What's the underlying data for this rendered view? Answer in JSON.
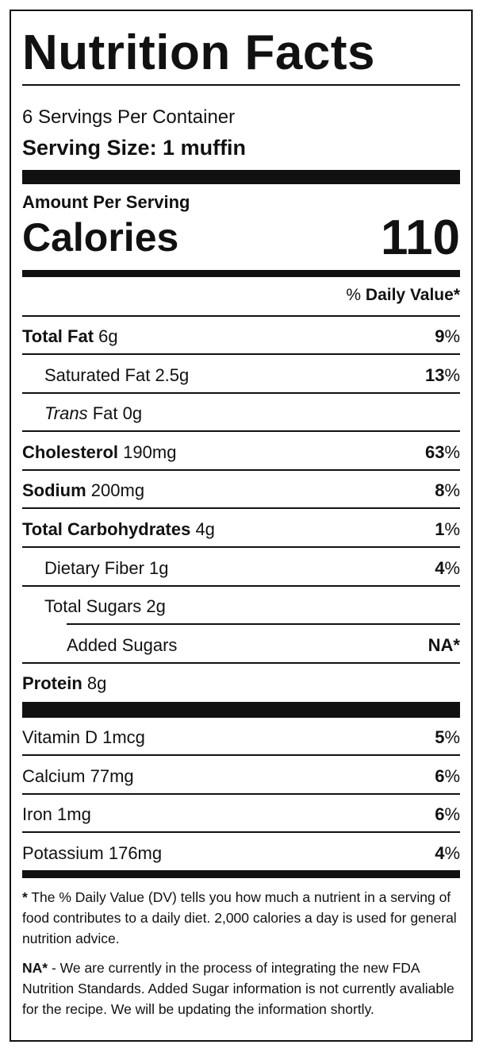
{
  "title": "Nutrition Facts",
  "servings_per_container": "6 Servings Per Container",
  "serving_size": "Serving Size: 1 muffin",
  "amount_per_serving": "Amount Per Serving",
  "calories_label": "Calories",
  "calories_value": "110",
  "dv_prefix": "% ",
  "dv_label": "Daily Value*",
  "nutrients": [
    {
      "name": "Total Fat",
      "amount": "6g",
      "bold": true,
      "indent": 0,
      "italic_prefix": "",
      "pct_num": "9",
      "pct_sign": "%"
    },
    {
      "name": "Saturated Fat",
      "amount": "2.5g",
      "bold": false,
      "indent": 1,
      "italic_prefix": "",
      "pct_num": "13",
      "pct_sign": "%"
    },
    {
      "name": "Fat",
      "amount": "0g",
      "bold": false,
      "indent": 1,
      "italic_prefix": "Trans",
      "pct_num": "",
      "pct_sign": ""
    },
    {
      "name": "Cholesterol",
      "amount": "190mg",
      "bold": true,
      "indent": 0,
      "italic_prefix": "",
      "pct_num": "63",
      "pct_sign": "%"
    },
    {
      "name": "Sodium",
      "amount": "200mg",
      "bold": true,
      "indent": 0,
      "italic_prefix": "",
      "pct_num": "8",
      "pct_sign": "%"
    },
    {
      "name": "Total Carbohydrates",
      "amount": "4g",
      "bold": true,
      "indent": 0,
      "italic_prefix": "",
      "pct_num": "1",
      "pct_sign": "%"
    },
    {
      "name": "Dietary Fiber",
      "amount": "1g",
      "bold": false,
      "indent": 1,
      "italic_prefix": "",
      "pct_num": "4",
      "pct_sign": "%"
    },
    {
      "name": "Total Sugars",
      "amount": "2g",
      "bold": false,
      "indent": 1,
      "italic_prefix": "",
      "pct_num": "",
      "pct_sign": ""
    },
    {
      "name": "Added Sugars",
      "amount": "",
      "bold": false,
      "indent": 2,
      "italic_prefix": "",
      "pct_num": "NA*",
      "pct_sign": ""
    },
    {
      "name": "Protein",
      "amount": "8g",
      "bold": true,
      "indent": 0,
      "italic_prefix": "",
      "pct_num": "",
      "pct_sign": ""
    }
  ],
  "vitamins": [
    {
      "name": "Vitamin D",
      "amount": "1mcg",
      "pct_num": "5",
      "pct_sign": "%"
    },
    {
      "name": "Calcium",
      "amount": "77mg",
      "pct_num": "6",
      "pct_sign": "%"
    },
    {
      "name": "Iron",
      "amount": "1mg",
      "pct_num": "6",
      "pct_sign": "%"
    },
    {
      "name": "Potassium",
      "amount": "176mg",
      "pct_num": "4",
      "pct_sign": "%"
    }
  ],
  "footnote_dv_mark": "*",
  "footnote_dv": " The % Daily Value (DV) tells you how much a nutrient in a serving of food contributes to a daily diet. 2,000 calories a day is used for general nutrition advice.",
  "footnote_na_mark": "NA*",
  "footnote_na": " - We are currently in the process of integrating the new FDA Nutrition Standards. Added Sugar information is not currently avaliable for the recipe. We will be updating the information shortly."
}
